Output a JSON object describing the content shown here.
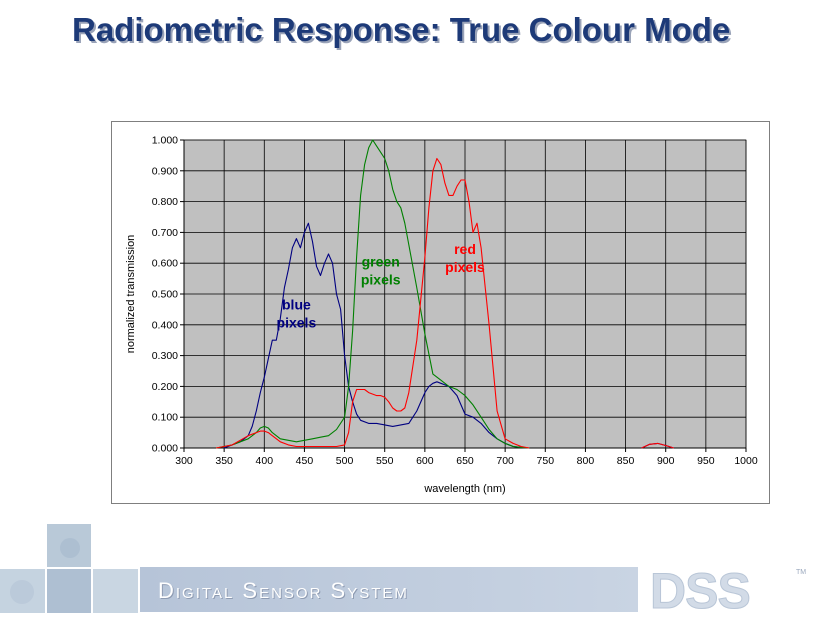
{
  "slide": {
    "title": "Radiometric Response: True Colour Mode"
  },
  "footer": {
    "tagline": "Digital Sensor System",
    "logo_text": "DSS",
    "trademark": "TM"
  },
  "colors": {
    "blue": "#000080",
    "green": "#008000",
    "red": "#ff0000",
    "plot_background": "#c0c0c0",
    "title": "#1d3a78"
  },
  "chart_data": {
    "type": "line",
    "title": "",
    "xlabel": "wavelength (nm)",
    "ylabel": "normalized transmission",
    "xlim": [
      300,
      1000
    ],
    "ylim": [
      0,
      1
    ],
    "xticks": [
      "300",
      "350",
      "400",
      "450",
      "500",
      "550",
      "600",
      "650",
      "700",
      "750",
      "800",
      "850",
      "900",
      "950",
      "1000"
    ],
    "yticks": [
      "0.000",
      "0.100",
      "0.200",
      "0.300",
      "0.400",
      "0.500",
      "0.600",
      "0.700",
      "0.800",
      "0.900",
      "1.000"
    ],
    "grid": true,
    "legend": "none",
    "series": [
      {
        "name": "blue pixels",
        "label_lines": [
          "blue",
          "pixels"
        ],
        "label_at": [
          440,
          0.45
        ],
        "color": "#000080",
        "x": [
          350,
          360,
          370,
          380,
          385,
          390,
          395,
          400,
          405,
          410,
          415,
          420,
          425,
          430,
          435,
          440,
          445,
          450,
          455,
          460,
          465,
          470,
          475,
          480,
          485,
          490,
          495,
          500,
          505,
          510,
          515,
          520,
          530,
          540,
          550,
          560,
          570,
          580,
          590,
          600,
          605,
          610,
          615,
          620,
          625,
          630,
          640,
          650,
          660,
          670,
          680,
          690,
          700,
          710,
          720,
          730,
          870,
          880,
          890,
          900,
          910
        ],
        "y": [
          0.0,
          0.01,
          0.02,
          0.04,
          0.07,
          0.12,
          0.18,
          0.23,
          0.29,
          0.35,
          0.35,
          0.42,
          0.52,
          0.58,
          0.65,
          0.68,
          0.65,
          0.7,
          0.73,
          0.67,
          0.59,
          0.56,
          0.6,
          0.63,
          0.6,
          0.5,
          0.45,
          0.3,
          0.2,
          0.15,
          0.11,
          0.09,
          0.08,
          0.08,
          0.075,
          0.07,
          0.075,
          0.08,
          0.12,
          0.18,
          0.2,
          0.21,
          0.215,
          0.21,
          0.205,
          0.2,
          0.17,
          0.11,
          0.1,
          0.08,
          0.05,
          0.03,
          0.015,
          0.005,
          0.002,
          0.0,
          0.0,
          0.012,
          0.015,
          0.008,
          0.0
        ]
      },
      {
        "name": "green pixels",
        "label_lines": [
          "green",
          "pixels"
        ],
        "label_at": [
          545,
          0.59
        ],
        "color": "#008000",
        "x": [
          340,
          350,
          360,
          370,
          380,
          390,
          395,
          400,
          405,
          410,
          420,
          430,
          440,
          450,
          460,
          470,
          480,
          490,
          500,
          505,
          510,
          515,
          520,
          525,
          530,
          535,
          540,
          545,
          550,
          555,
          560,
          565,
          570,
          575,
          580,
          590,
          600,
          610,
          620,
          630,
          640,
          650,
          660,
          670,
          680,
          690,
          700,
          710,
          720,
          730
        ],
        "y": [
          0.0,
          0.005,
          0.01,
          0.02,
          0.03,
          0.05,
          0.065,
          0.07,
          0.065,
          0.05,
          0.03,
          0.025,
          0.02,
          0.025,
          0.03,
          0.035,
          0.04,
          0.06,
          0.1,
          0.2,
          0.38,
          0.62,
          0.82,
          0.92,
          0.975,
          1.0,
          0.98,
          0.96,
          0.94,
          0.9,
          0.84,
          0.8,
          0.78,
          0.73,
          0.66,
          0.52,
          0.37,
          0.24,
          0.22,
          0.2,
          0.19,
          0.17,
          0.14,
          0.1,
          0.06,
          0.03,
          0.015,
          0.005,
          0.002,
          0.0
        ]
      },
      {
        "name": "red pixels",
        "label_lines": [
          "red",
          "pixels"
        ],
        "label_at": [
          650,
          0.63
        ],
        "color": "#ff0000",
        "x": [
          340,
          350,
          360,
          370,
          380,
          390,
          395,
          400,
          405,
          410,
          420,
          430,
          440,
          450,
          460,
          470,
          480,
          490,
          500,
          505,
          510,
          515,
          520,
          525,
          530,
          535,
          540,
          545,
          550,
          555,
          560,
          565,
          570,
          575,
          580,
          590,
          600,
          605,
          610,
          615,
          620,
          625,
          630,
          635,
          640,
          645,
          650,
          655,
          660,
          665,
          670,
          680,
          690,
          700,
          710,
          720,
          730,
          870,
          880,
          890,
          900,
          910
        ],
        "y": [
          0.0,
          0.005,
          0.01,
          0.025,
          0.04,
          0.05,
          0.055,
          0.055,
          0.05,
          0.04,
          0.02,
          0.01,
          0.005,
          0.005,
          0.005,
          0.005,
          0.005,
          0.005,
          0.01,
          0.05,
          0.15,
          0.19,
          0.19,
          0.19,
          0.18,
          0.175,
          0.17,
          0.17,
          0.165,
          0.15,
          0.13,
          0.12,
          0.12,
          0.13,
          0.18,
          0.35,
          0.62,
          0.78,
          0.9,
          0.94,
          0.92,
          0.86,
          0.82,
          0.82,
          0.85,
          0.87,
          0.87,
          0.8,
          0.7,
          0.73,
          0.65,
          0.4,
          0.12,
          0.03,
          0.015,
          0.005,
          0.0,
          0.0,
          0.012,
          0.015,
          0.008,
          0.0
        ]
      }
    ]
  }
}
